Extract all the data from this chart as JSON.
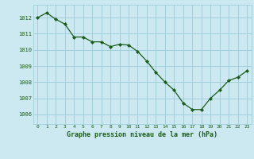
{
  "x": [
    0,
    1,
    2,
    3,
    4,
    5,
    6,
    7,
    8,
    9,
    10,
    11,
    12,
    13,
    14,
    15,
    16,
    17,
    18,
    19,
    20,
    21,
    22,
    23
  ],
  "y": [
    1012.0,
    1012.3,
    1011.9,
    1011.6,
    1010.8,
    1010.8,
    1010.5,
    1010.5,
    1010.2,
    1010.35,
    1010.3,
    1009.9,
    1009.3,
    1008.6,
    1008.0,
    1007.5,
    1006.7,
    1006.3,
    1006.3,
    1007.0,
    1007.5,
    1008.1,
    1008.3,
    1008.7
  ],
  "line_color": "#1a5c1a",
  "marker": "D",
  "marker_size": 2.2,
  "bg_color": "#cce8f0",
  "grid_color": "#99ccd9",
  "title": "Graphe pression niveau de la mer (hPa)",
  "yticks": [
    1006,
    1007,
    1008,
    1009,
    1010,
    1011,
    1012
  ],
  "xtick_labels": [
    "0",
    "1",
    "2",
    "3",
    "4",
    "5",
    "6",
    "7",
    "8",
    "9",
    "10",
    "11",
    "12",
    "13",
    "14",
    "15",
    "16",
    "17",
    "18",
    "19",
    "20",
    "21",
    "22",
    "23"
  ],
  "tick_color": "#1a5c1a",
  "title_color": "#1a5c1a",
  "ylim": [
    1005.4,
    1012.8
  ],
  "xlim": [
    -0.5,
    23.5
  ]
}
